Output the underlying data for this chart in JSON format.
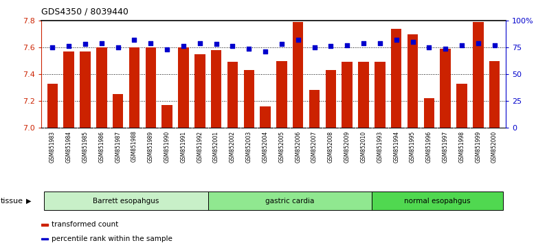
{
  "title": "GDS4350 / 8039440",
  "samples": [
    "GSM851983",
    "GSM851984",
    "GSM851985",
    "GSM851986",
    "GSM851987",
    "GSM851988",
    "GSM851989",
    "GSM851990",
    "GSM851991",
    "GSM851992",
    "GSM852001",
    "GSM852002",
    "GSM852003",
    "GSM852004",
    "GSM852005",
    "GSM852006",
    "GSM852007",
    "GSM852008",
    "GSM852009",
    "GSM852010",
    "GSM851993",
    "GSM851994",
    "GSM851995",
    "GSM851996",
    "GSM851997",
    "GSM851998",
    "GSM851999",
    "GSM852000"
  ],
  "bar_values": [
    7.33,
    7.57,
    7.57,
    7.6,
    7.25,
    7.6,
    7.6,
    7.17,
    7.6,
    7.55,
    7.58,
    7.49,
    7.43,
    7.16,
    7.5,
    7.79,
    7.28,
    7.43,
    7.49,
    7.49,
    7.49,
    7.74,
    7.7,
    7.22,
    7.59,
    7.33,
    7.79,
    7.5
  ],
  "dot_values": [
    75,
    76,
    78,
    79,
    75,
    82,
    79,
    73,
    76,
    79,
    78,
    76,
    74,
    71,
    78,
    82,
    75,
    76,
    77,
    79,
    79,
    82,
    80,
    75,
    74,
    77,
    79,
    77
  ],
  "tissue_groups": [
    {
      "label": "Barrett esopahgus",
      "start": 0,
      "end": 10,
      "color": "#c8f0c8"
    },
    {
      "label": "gastric cardia",
      "start": 10,
      "end": 20,
      "color": "#90e890"
    },
    {
      "label": "normal esopahgus",
      "start": 20,
      "end": 28,
      "color": "#50d850"
    }
  ],
  "bar_color": "#cc2200",
  "dot_color": "#0000cc",
  "ylim_left": [
    7.0,
    7.8
  ],
  "ylim_right": [
    0,
    100
  ],
  "yticks_left": [
    7.0,
    7.2,
    7.4,
    7.6,
    7.8
  ],
  "yticks_right": [
    0,
    25,
    50,
    75,
    100
  ],
  "ytick_labels_right": [
    "0",
    "25",
    "50",
    "75",
    "100%"
  ],
  "gridlines": [
    7.2,
    7.4,
    7.6
  ],
  "legend": [
    {
      "label": "transformed count",
      "color": "#cc2200"
    },
    {
      "label": "percentile rank within the sample",
      "color": "#0000cc"
    }
  ],
  "xtick_bg_color": "#c8c8c8",
  "plot_bg_color": "#ffffff",
  "tissue_label": "tissue"
}
